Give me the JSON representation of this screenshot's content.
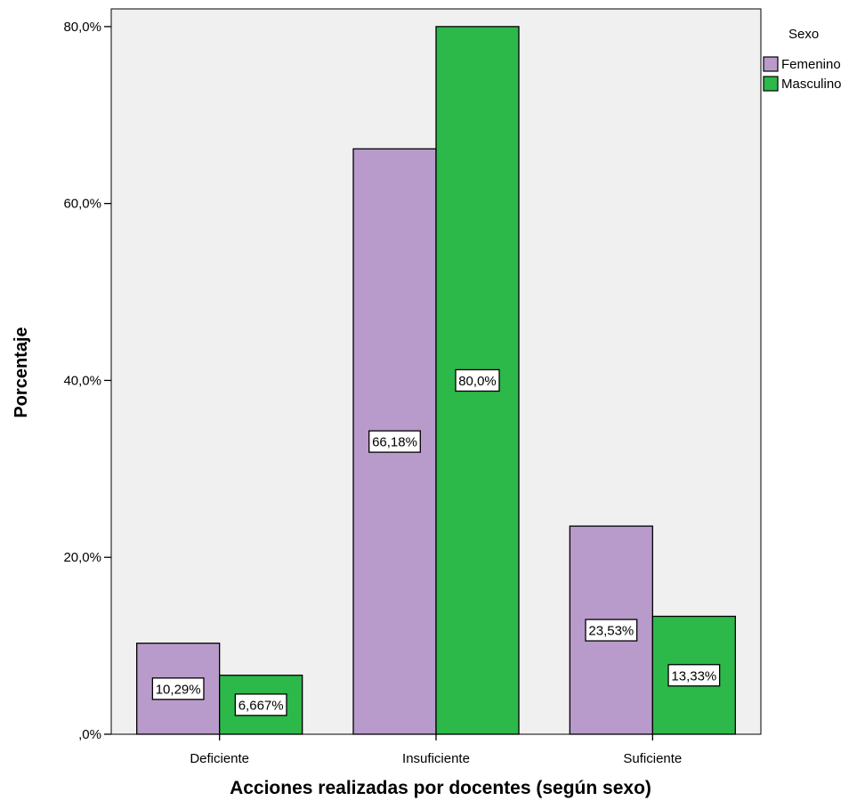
{
  "chart_data": {
    "type": "bar",
    "title": "",
    "xlabel": "Acciones realizadas por docentes (según sexo)",
    "ylabel": "Porcentaje",
    "categories": [
      "Deficiente",
      "Insuficiente",
      "Suficiente"
    ],
    "series": [
      {
        "name": "Femenino",
        "values": [
          10.29,
          66.18,
          23.53
        ],
        "labels": [
          "10,29%",
          "66,18%",
          "23,53%"
        ],
        "color": "#b89acb"
      },
      {
        "name": "Masculino",
        "values": [
          6.667,
          80.0,
          13.33
        ],
        "labels": [
          "6,667%",
          "80,0%",
          "13,33%"
        ],
        "color": "#2db84a"
      }
    ],
    "ylim": [
      0,
      82
    ],
    "yticks": [
      0,
      20,
      40,
      60,
      80
    ],
    "ytick_labels": [
      ",0%",
      "20,0%",
      "40,0%",
      "60,0%",
      "80,0%"
    ],
    "grid": false,
    "legend_title": "Sexo",
    "legend_position": "top-right",
    "plot_background": "#f0f0f0"
  }
}
